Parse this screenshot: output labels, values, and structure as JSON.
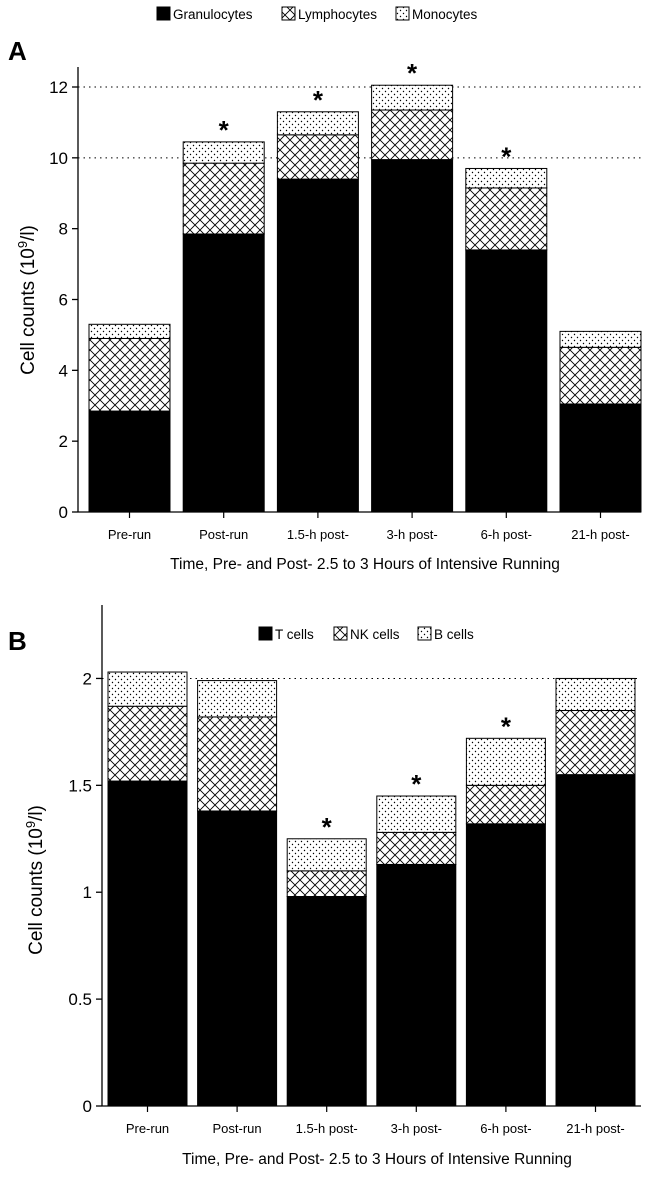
{
  "chart_data": [
    {
      "type": "bar",
      "stacked": true,
      "panel_label": "A",
      "xlabel": "Time, Pre- and Post- 2.5 to 3 Hours of Intensive Running",
      "ylabel_main": "Cell counts (10",
      "ylabel_sup": "9",
      "ylabel_end": "/l)",
      "ylim": [
        0,
        12
      ],
      "yticks": [
        "0",
        "2",
        "4",
        "6",
        "8",
        "10",
        "12"
      ],
      "grid": "dotted horizontal lines at 10 and 12",
      "legend_position": "top-center",
      "categories": [
        "Pre-run",
        "Post-run",
        "1.5-h post-",
        "3-h post-",
        "6-h post-",
        "21-h post-"
      ],
      "series": [
        {
          "name": "Granulocytes",
          "pattern": "solid",
          "values": [
            2.85,
            7.85,
            9.4,
            9.95,
            7.4,
            3.05
          ]
        },
        {
          "name": "Lymphocytes",
          "pattern": "crosshatch",
          "values": [
            2.05,
            2.0,
            1.25,
            1.4,
            1.75,
            1.6
          ]
        },
        {
          "name": "Monocytes",
          "pattern": "dotted",
          "values": [
            0.4,
            0.6,
            0.65,
            0.7,
            0.55,
            0.45
          ]
        }
      ],
      "significance": [
        "",
        "*",
        "*",
        "*",
        "*",
        ""
      ]
    },
    {
      "type": "bar",
      "stacked": true,
      "panel_label": "B",
      "xlabel": "Time, Pre- and Post- 2.5 to 3 Hours of Intensive Running",
      "ylabel_main": "Cell counts (10",
      "ylabel_sup": "9",
      "ylabel_end": "/l)",
      "ylim": [
        0,
        2.25
      ],
      "yticks": [
        "0",
        "0.5",
        "1",
        "1.5",
        "2"
      ],
      "grid": "dotted horizontal line at 2",
      "legend_position": "top-center",
      "categories": [
        "Pre-run",
        "Post-run",
        "1.5-h post-",
        "3-h post-",
        "6-h post-",
        "21-h post-"
      ],
      "series": [
        {
          "name": "T cells",
          "pattern": "solid",
          "values": [
            1.52,
            1.38,
            0.98,
            1.13,
            1.32,
            1.55
          ]
        },
        {
          "name": "NK cells",
          "pattern": "crosshatch",
          "values": [
            0.35,
            0.44,
            0.12,
            0.15,
            0.18,
            0.3
          ]
        },
        {
          "name": "B cells",
          "pattern": "dotted",
          "values": [
            0.16,
            0.17,
            0.15,
            0.17,
            0.22,
            0.15
          ]
        }
      ],
      "significance": [
        "",
        "",
        "*",
        "*",
        "*",
        ""
      ]
    }
  ]
}
